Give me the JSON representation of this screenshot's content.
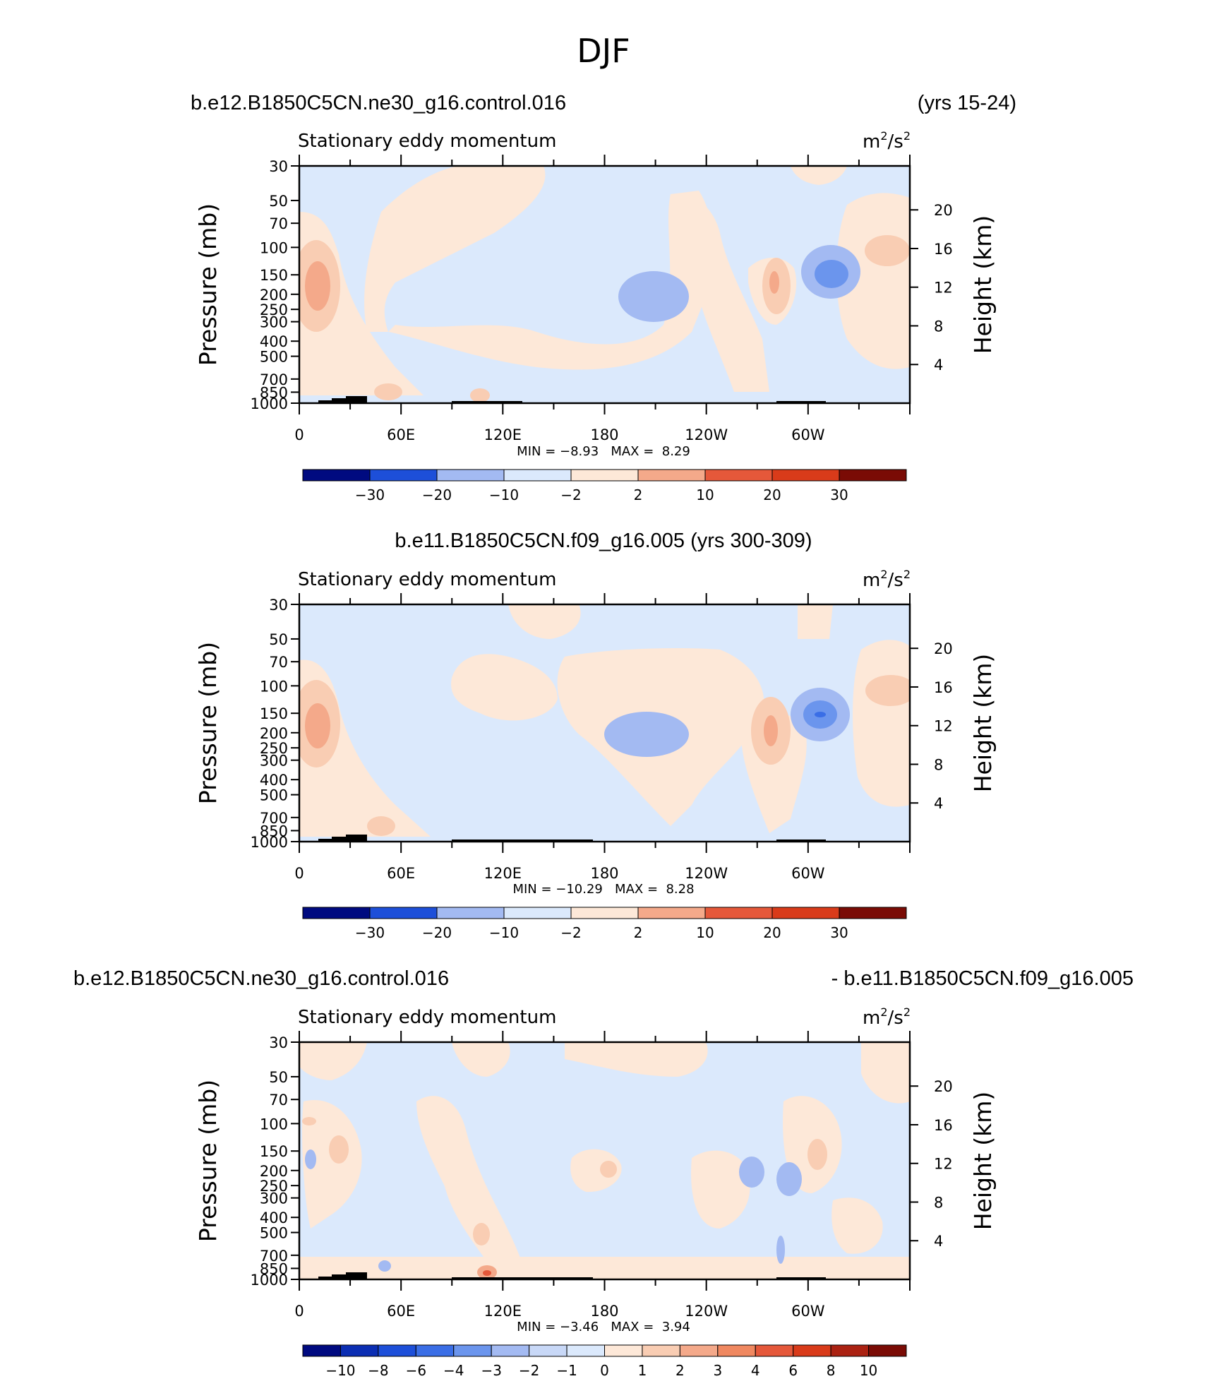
{
  "figure_title": "DJF",
  "colors": {
    "neg": [
      "#000a80",
      "#0b2eb3",
      "#1d4fd9",
      "#3a6ee6",
      "#6b95ed",
      "#a3baf2",
      "#c8d8f7",
      "#dbe9fc"
    ],
    "pos": [
      "#fde8d8",
      "#f9cdb3",
      "#f4a98a",
      "#f08860",
      "#e5583a",
      "#d93b1a",
      "#ab2212",
      "#7a0b05"
    ],
    "land": "#000000"
  },
  "chart_data": [
    {
      "type": "contour",
      "title_left": "b.e12.B1850C5CN.ne30_g16.control.016",
      "title_right": "(yrs 15-24)",
      "title_center": "",
      "subtitle": "Stationary eddy momentum",
      "units_base": "m",
      "units_exp1": "2",
      "units_mid": "/s",
      "units_exp2": "2",
      "ylabel": "Pressure (mb)",
      "ylabel_right": "Height (km)",
      "yticks": [
        "30",
        "50",
        "70",
        "100",
        "150",
        "200",
        "250",
        "300",
        "400",
        "500",
        "700",
        "850",
        "1000"
      ],
      "yticks_right": [
        "20",
        "16",
        "12",
        "8",
        "4"
      ],
      "xticks": [
        "0",
        "60E",
        "120E",
        "180",
        "120W",
        "60W"
      ],
      "stats": "MIN = −8.93   MAX =  8.29",
      "min": -8.93,
      "max": 8.29,
      "colorbar_labels": [
        "−30",
        "−20",
        "−10",
        "−2",
        "2",
        "10",
        "20",
        "30"
      ]
    },
    {
      "type": "contour",
      "title_left": "",
      "title_right": "",
      "title_center": "b.e11.B1850C5CN.f09_g16.005 (yrs 300-309)",
      "subtitle": "Stationary eddy momentum",
      "units_base": "m",
      "units_exp1": "2",
      "units_mid": "/s",
      "units_exp2": "2",
      "ylabel": "Pressure (mb)",
      "ylabel_right": "Height (km)",
      "yticks": [
        "30",
        "50",
        "70",
        "100",
        "150",
        "200",
        "250",
        "300",
        "400",
        "500",
        "700",
        "850",
        "1000"
      ],
      "yticks_right": [
        "20",
        "16",
        "12",
        "8",
        "4"
      ],
      "xticks": [
        "0",
        "60E",
        "120E",
        "180",
        "120W",
        "60W"
      ],
      "stats": "MIN = −10.29   MAX =  8.28",
      "min": -10.29,
      "max": 8.28,
      "colorbar_labels": [
        "−30",
        "−20",
        "−10",
        "−2",
        "2",
        "10",
        "20",
        "30"
      ]
    },
    {
      "type": "contour",
      "title_left": "b.e12.B1850C5CN.ne30_g16.control.016",
      "title_right": "- b.e11.B1850C5CN.f09_g16.005",
      "title_center": "",
      "subtitle": "Stationary eddy momentum",
      "units_base": "m",
      "units_exp1": "2",
      "units_mid": "/s",
      "units_exp2": "2",
      "ylabel": "Pressure (mb)",
      "ylabel_right": "Height (km)",
      "yticks": [
        "30",
        "50",
        "70",
        "100",
        "150",
        "200",
        "250",
        "300",
        "400",
        "500",
        "700",
        "850",
        "1000"
      ],
      "yticks_right": [
        "20",
        "16",
        "12",
        "8",
        "4"
      ],
      "xticks": [
        "0",
        "60E",
        "120E",
        "180",
        "120W",
        "60W"
      ],
      "stats": "MIN = −3.46   MAX =  3.94",
      "min": -3.46,
      "max": 3.94,
      "colorbar_labels": [
        "−10",
        "−8",
        "−6",
        "−4",
        "−3",
        "−2",
        "−1",
        "0",
        "1",
        "2",
        "3",
        "4",
        "6",
        "8",
        "10"
      ]
    }
  ]
}
